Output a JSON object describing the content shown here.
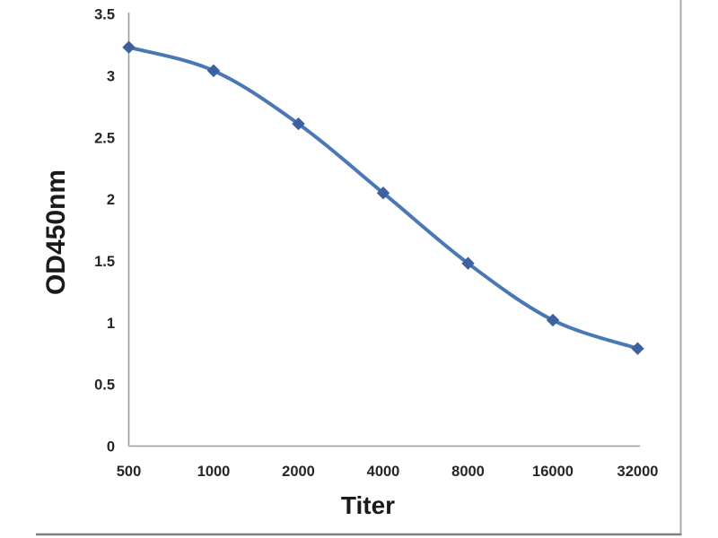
{
  "figure": {
    "background": "#ffffff",
    "right_border_color": "#a9a9a9",
    "bottom_border_color": "#7f7f7f"
  },
  "chart_data": {
    "type": "line",
    "title": "",
    "categories": [
      "500",
      "1000",
      "2000",
      "4000",
      "8000",
      "16000",
      "32000"
    ],
    "values": [
      3.23,
      3.04,
      2.61,
      2.05,
      1.48,
      1.02,
      0.79
    ],
    "series": [
      {
        "name": "OD450nm",
        "values": [
          3.23,
          3.04,
          2.61,
          2.05,
          1.48,
          1.02,
          0.79
        ]
      }
    ],
    "xlabel": "Titer",
    "ylabel": "OD450nm",
    "ylim": [
      0,
      3.5
    ],
    "yticks": [
      "3.5",
      "3",
      "2.5",
      "2",
      "1.5",
      "1",
      "0.5",
      "0"
    ],
    "ytick_values": [
      3.5,
      3,
      2.5,
      2,
      1.5,
      1,
      0.5,
      0
    ],
    "grid": false,
    "legend": "none",
    "smooth": true,
    "marker": "diamond",
    "line_color": "#4a77b5",
    "marker_color": "#3c619e",
    "axis_color": "#9b9b9b",
    "tick_color": "#262626"
  }
}
